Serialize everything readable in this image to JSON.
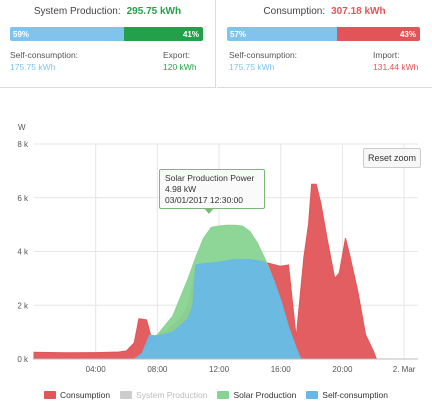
{
  "production_panel": {
    "title": "System Production:",
    "value": "295.75 kWh",
    "bar_left_label": "59%",
    "bar_right_label": "41%",
    "bar_left_fraction": 0.59,
    "left_label": "Self-consumption:",
    "left_value": "175.75 kWh",
    "right_label": "Export:",
    "right_value": "120 kWh",
    "colors": {
      "left": "#80c4ee",
      "right": "#23a04a"
    }
  },
  "consumption_panel": {
    "title": "Consumption:",
    "value": "307.18 kWh",
    "bar_left_label": "57%",
    "bar_right_label": "43%",
    "bar_left_fraction": 0.57,
    "left_label": "Self-consumption:",
    "left_value": "175.75 kWh",
    "right_label": "Import:",
    "right_value": "131.44 kWh",
    "colors": {
      "left": "#80c4ee",
      "right": "#e15558"
    }
  },
  "chart": {
    "reset_zoom_label": "Reset zoom",
    "tooltip": {
      "title": "Solar Production Power",
      "value": "4.98 kW",
      "time": "03/01/2017 12:30:00"
    }
  },
  "chart_data": {
    "type": "area",
    "ylabel": "W",
    "y_ticks": [
      {
        "value": 0,
        "label": "0 k"
      },
      {
        "value": 2000,
        "label": "2 k"
      },
      {
        "value": 4000,
        "label": "4 k"
      },
      {
        "value": 6000,
        "label": "6 k"
      },
      {
        "value": 8000,
        "label": "8 k"
      }
    ],
    "ylim": [
      0,
      8000
    ],
    "x_unit": "hours",
    "xlim": [
      0,
      24.9
    ],
    "x_ticks": [
      {
        "value": 4,
        "label": "04:00"
      },
      {
        "value": 8,
        "label": "08:00"
      },
      {
        "value": 12,
        "label": "12:00"
      },
      {
        "value": 16,
        "label": "16:00"
      },
      {
        "value": 20,
        "label": "20:00"
      },
      {
        "value": 24,
        "label": "2. Mar"
      }
    ],
    "grid": true,
    "legend_position": "bottom",
    "series": [
      {
        "name": "Consumption",
        "color": "#e15558",
        "visible": true,
        "points": [
          [
            0,
            250
          ],
          [
            2,
            230
          ],
          [
            4,
            240
          ],
          [
            5.5,
            260
          ],
          [
            6,
            300
          ],
          [
            6.5,
            600
          ],
          [
            6.8,
            1500
          ],
          [
            7.3,
            1450
          ],
          [
            7.6,
            800
          ],
          [
            8.5,
            1000
          ],
          [
            9.5,
            1500
          ],
          [
            10,
            2000
          ],
          [
            10.5,
            3500
          ],
          [
            11,
            3550
          ],
          [
            12,
            3600
          ],
          [
            13,
            3700
          ],
          [
            14,
            3700
          ],
          [
            14.8,
            3650
          ],
          [
            15,
            3600
          ],
          [
            16,
            3450
          ],
          [
            16.5,
            3500
          ],
          [
            17,
            800
          ],
          [
            17.5,
            3800
          ],
          [
            17.8,
            5000
          ],
          [
            18,
            6500
          ],
          [
            18.3,
            6500
          ],
          [
            18.6,
            5800
          ],
          [
            19,
            4500
          ],
          [
            19.5,
            3000
          ],
          [
            19.8,
            3200
          ],
          [
            20.2,
            4500
          ],
          [
            20.5,
            3800
          ],
          [
            21,
            2500
          ],
          [
            21.5,
            900
          ],
          [
            22,
            300
          ],
          [
            22.2,
            0
          ]
        ]
      },
      {
        "name": "System Production",
        "color": "#cccccc",
        "visible": false,
        "points": []
      },
      {
        "name": "Solar Production",
        "color": "#87d492",
        "visible": true,
        "points": [
          [
            6.5,
            0
          ],
          [
            7,
            200
          ],
          [
            8,
            900
          ],
          [
            9,
            1600
          ],
          [
            10,
            3000
          ],
          [
            10.5,
            3800
          ],
          [
            11,
            4500
          ],
          [
            11.5,
            4900
          ],
          [
            12,
            4950
          ],
          [
            12.5,
            4980
          ],
          [
            13,
            4980
          ],
          [
            13.5,
            4950
          ],
          [
            14,
            4750
          ],
          [
            14.5,
            4300
          ],
          [
            15,
            3700
          ],
          [
            15.5,
            3000
          ],
          [
            16,
            2200
          ],
          [
            16.5,
            1200
          ],
          [
            17,
            400
          ],
          [
            17.3,
            0
          ]
        ]
      },
      {
        "name": "Self-consumption",
        "color": "#68b8e6",
        "visible": true,
        "points": [
          [
            6.5,
            0
          ],
          [
            7,
            200
          ],
          [
            7.5,
            900
          ],
          [
            8,
            850
          ],
          [
            9,
            1000
          ],
          [
            10,
            1500
          ],
          [
            10.3,
            2000
          ],
          [
            10.5,
            3500
          ],
          [
            11,
            3550
          ],
          [
            12,
            3600
          ],
          [
            13,
            3700
          ],
          [
            14,
            3700
          ],
          [
            15,
            3600
          ],
          [
            15.5,
            3000
          ],
          [
            16,
            2200
          ],
          [
            16.5,
            1200
          ],
          [
            17,
            400
          ],
          [
            17.3,
            0
          ]
        ]
      }
    ]
  }
}
